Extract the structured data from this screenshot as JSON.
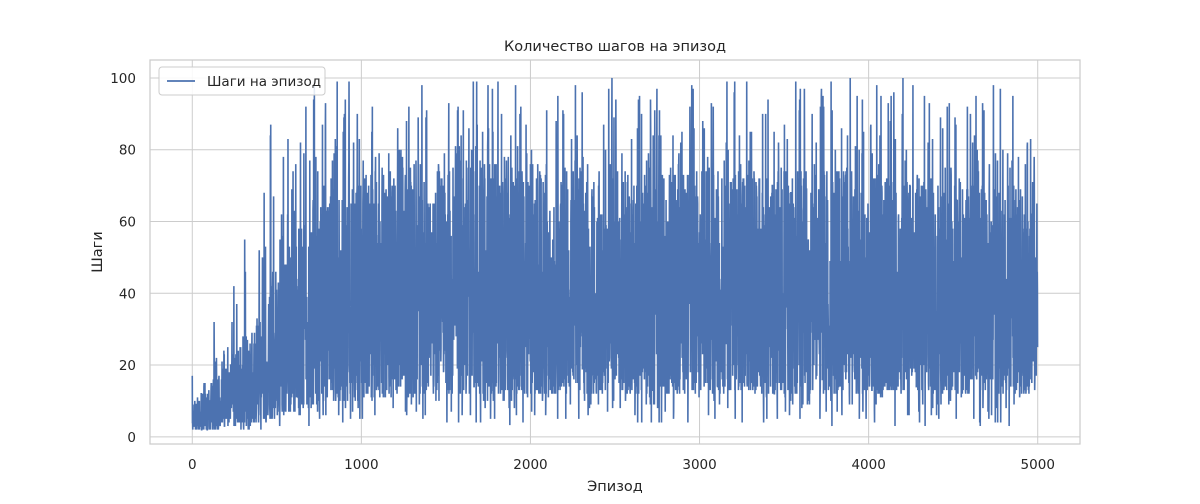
{
  "chart_data": {
    "type": "line",
    "title": "Количество шагов на эпизод",
    "xlabel": "Эпизод",
    "ylabel": "Шаги",
    "xlim": [
      -250,
      5250
    ],
    "ylim": [
      -2,
      105
    ],
    "xticks": [
      0,
      1000,
      2000,
      3000,
      4000,
      5000
    ],
    "xtick_labels": [
      "0",
      "1000",
      "2000",
      "3000",
      "4000",
      "5000"
    ],
    "yticks": [
      0,
      20,
      40,
      60,
      80,
      100
    ],
    "ytick_labels": [
      "0",
      "20",
      "40",
      "60",
      "80",
      "100"
    ],
    "grid": true,
    "legend_position": "top-left",
    "episodes": 5000,
    "series": [
      {
        "name": "Шаги на эпизод",
        "color": "#4c72b0",
        "envelope": {
          "x": [
            0,
            100,
            200,
            300,
            400,
            450,
            500,
            600,
            700,
            800,
            900,
            1000,
            1200,
            1500,
            2000,
            2500,
            3000,
            3500,
            4000,
            4500,
            5000
          ],
          "max": [
            18,
            29,
            44,
            66,
            65,
            92,
            80,
            100,
            100,
            100,
            100,
            100,
            100,
            100,
            100,
            100,
            100,
            100,
            100,
            100,
            100
          ],
          "typical_high": [
            8,
            12,
            16,
            22,
            28,
            34,
            40,
            45,
            50,
            55,
            58,
            60,
            62,
            62,
            62,
            60,
            60,
            60,
            60,
            58,
            58
          ],
          "typical_low": [
            2,
            2,
            3,
            3,
            4,
            5,
            6,
            7,
            8,
            9,
            10,
            10,
            11,
            12,
            12,
            12,
            12,
            12,
            12,
            12,
            12
          ],
          "min": [
            2,
            2,
            2,
            2,
            2,
            2,
            2,
            2,
            3,
            3,
            4,
            4,
            5,
            4,
            3,
            4,
            3,
            3,
            3,
            3,
            2
          ]
        }
      }
    ]
  }
}
